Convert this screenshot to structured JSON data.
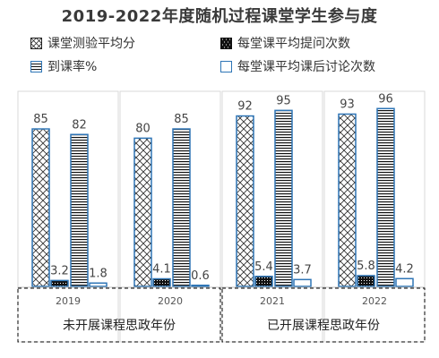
{
  "chart_data": {
    "type": "bar",
    "title": "2019-2022年度随机过程课堂学生参与度",
    "categories": [
      "2019",
      "2020",
      "2021",
      "2022"
    ],
    "series": [
      {
        "name": "课堂测验平均分",
        "pattern": "crosshatch",
        "values": [
          85,
          80,
          92,
          93
        ]
      },
      {
        "name": "每堂课平均提问次数",
        "pattern": "dense-dots",
        "values": [
          3.2,
          4.1,
          5.4,
          5.8
        ]
      },
      {
        "name": "到课率%",
        "pattern": "horizontal-lines",
        "values": [
          82,
          85,
          95,
          96
        ]
      },
      {
        "name": "每堂课平均课后讨论次数",
        "pattern": "solid-white",
        "values": [
          1.8,
          0.6,
          3.7,
          4.2
        ]
      }
    ],
    "groups": [
      {
        "label": "未开展课程思政年份",
        "categories": [
          "2019",
          "2020"
        ]
      },
      {
        "label": "已开展课程思政年份",
        "categories": [
          "2021",
          "2022"
        ]
      }
    ],
    "ylim": [
      0,
      100
    ],
    "xlabel": "",
    "ylabel": "",
    "grid": false,
    "legend_position": "top",
    "colors": {
      "bar_outline": "#2e75b6",
      "pattern_fill": "#000000",
      "panel_border": "#d9d9d9",
      "group_border": "#000000"
    }
  }
}
